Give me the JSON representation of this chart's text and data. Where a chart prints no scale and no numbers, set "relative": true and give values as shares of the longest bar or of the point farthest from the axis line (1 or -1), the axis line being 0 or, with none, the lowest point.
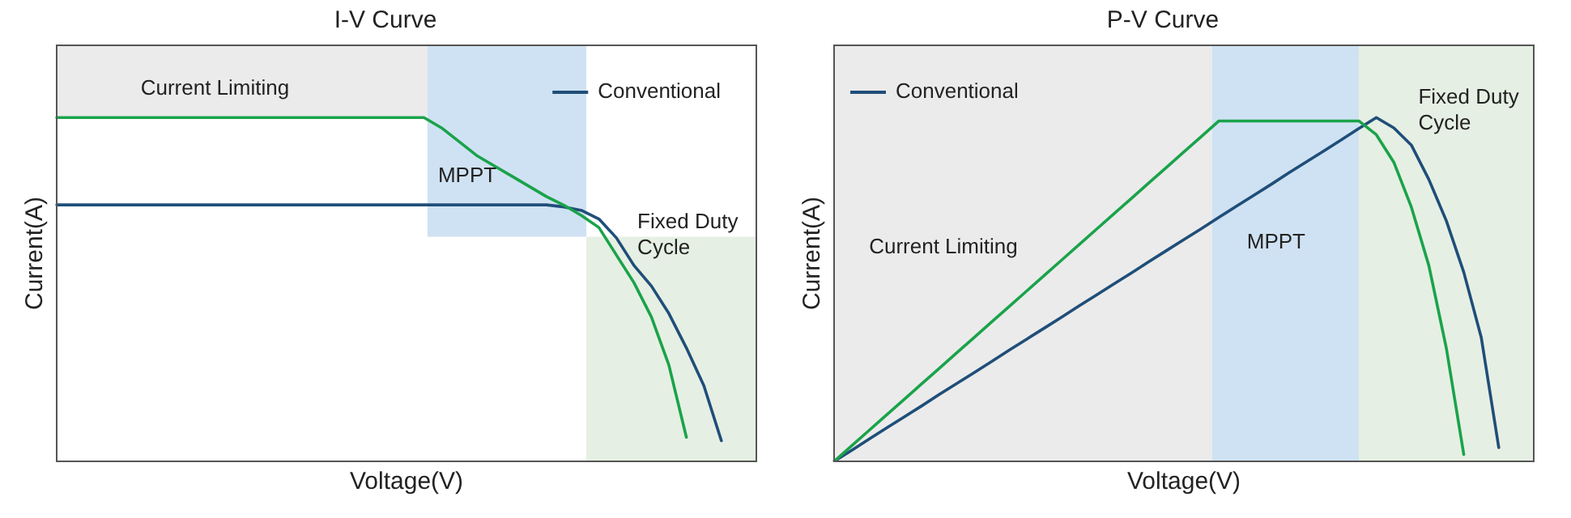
{
  "chart_data": [
    {
      "type": "line",
      "title": "I-V Curve",
      "xlabel": "Voltage(V)",
      "ylabel": "Current(A)",
      "relative": true,
      "legend": "top right",
      "marker": "none",
      "line_style": "solid",
      "categories": [
        null,
        null,
        null,
        null,
        null,
        null,
        null,
        null,
        null,
        null,
        null,
        null,
        null,
        null,
        null,
        null,
        null,
        null,
        null,
        null,
        null,
        null,
        null,
        null,
        null,
        null,
        null,
        null,
        null,
        null,
        null,
        null,
        null,
        null,
        null,
        null,
        null,
        null,
        null,
        null,
        null
      ],
      "series": [
        {
          "color": "#1aa34a",
          "values": [
            1,
            1,
            1,
            1,
            1,
            1,
            1,
            1,
            1,
            1,
            1,
            1,
            1,
            1,
            1,
            1,
            1,
            1,
            1,
            1,
            1,
            1,
            0.97,
            0.93,
            0.89,
            0.86,
            0.83,
            0.8,
            0.77,
            0.745,
            0.715,
            0.68,
            0.6,
            0.52,
            0.42,
            0.28,
            0.07,
            null,
            null,
            null,
            null
          ]
        },
        {
          "name": "Conventional",
          "color": "#1f4e79",
          "values": [
            0.746,
            0.746,
            0.746,
            0.746,
            0.746,
            0.746,
            0.746,
            0.746,
            0.746,
            0.746,
            0.746,
            0.746,
            0.746,
            0.746,
            0.746,
            0.746,
            0.746,
            0.746,
            0.746,
            0.746,
            0.746,
            0.746,
            0.746,
            0.746,
            0.746,
            0.746,
            0.746,
            0.746,
            0.746,
            0.74,
            0.73,
            0.705,
            0.65,
            0.57,
            0.51,
            0.43,
            0.33,
            0.22,
            0.06,
            null,
            null
          ]
        }
      ],
      "annotations": [
        "Current Limiting",
        "MPPT",
        "Fixed Duty Cycle"
      ]
    },
    {
      "type": "line",
      "title": "P-V Curve",
      "xlabel": "Voltage(V)",
      "ylabel": "Current(A)",
      "relative": true,
      "legend": "top left",
      "marker": "none",
      "line_style": "solid",
      "categories": [
        null,
        null,
        null,
        null,
        null,
        null,
        null,
        null,
        null,
        null,
        null,
        null,
        null,
        null,
        null,
        null,
        null,
        null,
        null,
        null,
        null,
        null,
        null,
        null,
        null,
        null,
        null,
        null,
        null,
        null,
        null,
        null,
        null,
        null,
        null,
        null,
        null,
        null,
        null,
        null,
        null
      ],
      "series": [
        {
          "color": "#1aa34a",
          "values": [
            0,
            0.045,
            0.09,
            0.135,
            0.18,
            0.225,
            0.27,
            0.315,
            0.36,
            0.405,
            0.45,
            0.495,
            0.54,
            0.585,
            0.63,
            0.675,
            0.72,
            0.765,
            0.81,
            0.855,
            0.9,
            0.945,
            0.99,
            0.99,
            0.99,
            0.99,
            0.99,
            0.99,
            0.99,
            0.99,
            0.99,
            0.95,
            0.87,
            0.74,
            0.57,
            0.33,
            0.02,
            null,
            null,
            null,
            null
          ]
        },
        {
          "name": "Conventional",
          "color": "#1f4e79",
          "values": [
            0,
            0.032,
            0.065,
            0.097,
            0.129,
            0.161,
            0.194,
            0.226,
            0.258,
            0.29,
            0.323,
            0.355,
            0.387,
            0.419,
            0.452,
            0.484,
            0.516,
            0.548,
            0.581,
            0.613,
            0.645,
            0.677,
            0.71,
            0.742,
            0.774,
            0.806,
            0.839,
            0.871,
            0.903,
            0.935,
            0.968,
            1,
            0.97,
            0.92,
            0.82,
            0.7,
            0.55,
            0.36,
            0.04,
            null,
            null
          ]
        }
      ],
      "annotations": [
        "Current Limiting",
        "MPPT",
        "Fixed Duty Cycle"
      ]
    }
  ]
}
